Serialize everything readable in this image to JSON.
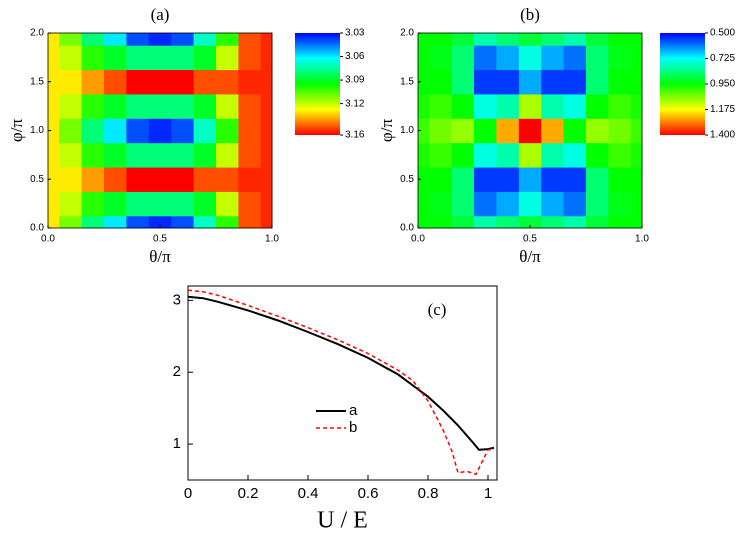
{
  "chart_data": [
    {
      "type": "heatmap",
      "title": "(a)",
      "xlabel": "θ/π",
      "ylabel": "φ/π",
      "x": [
        0,
        0.1,
        0.2,
        0.3,
        0.4,
        0.5,
        0.6,
        0.7,
        0.8,
        0.9,
        1.0
      ],
      "y": [
        0,
        0.25,
        0.5,
        0.75,
        1.0,
        1.25,
        1.5,
        1.75,
        2.0
      ],
      "z": [
        [
          3.13,
          3.11,
          3.08,
          3.06,
          3.04,
          3.035,
          3.04,
          3.07,
          3.1,
          3.15,
          3.155
        ],
        [
          3.13,
          3.12,
          3.1,
          3.09,
          3.08,
          3.08,
          3.08,
          3.09,
          3.12,
          3.15,
          3.155
        ],
        [
          3.13,
          3.13,
          3.14,
          3.15,
          3.16,
          3.16,
          3.16,
          3.15,
          3.15,
          3.155,
          3.155
        ],
        [
          3.13,
          3.12,
          3.1,
          3.09,
          3.08,
          3.08,
          3.08,
          3.09,
          3.12,
          3.15,
          3.155
        ],
        [
          3.13,
          3.11,
          3.08,
          3.06,
          3.04,
          3.035,
          3.04,
          3.07,
          3.1,
          3.15,
          3.155
        ],
        [
          3.13,
          3.12,
          3.1,
          3.09,
          3.08,
          3.08,
          3.08,
          3.09,
          3.12,
          3.15,
          3.155
        ],
        [
          3.13,
          3.13,
          3.14,
          3.15,
          3.16,
          3.16,
          3.16,
          3.15,
          3.15,
          3.155,
          3.155
        ],
        [
          3.13,
          3.12,
          3.1,
          3.09,
          3.08,
          3.08,
          3.08,
          3.09,
          3.12,
          3.15,
          3.155
        ],
        [
          3.13,
          3.11,
          3.08,
          3.06,
          3.04,
          3.035,
          3.04,
          3.07,
          3.1,
          3.15,
          3.155
        ]
      ],
      "xlim": [
        0,
        1
      ],
      "ylim": [
        0,
        2
      ],
      "xticks": [
        {
          "value": 0,
          "label": "0.0"
        },
        {
          "value": 0.5,
          "label": "0.5"
        },
        {
          "value": 1,
          "label": "1.0"
        }
      ],
      "yticks": [
        {
          "value": 0,
          "label": "0.0"
        },
        {
          "value": 0.5,
          "label": "0.5"
        },
        {
          "value": 1,
          "label": "1.0"
        },
        {
          "value": 1.5,
          "label": "1.5"
        },
        {
          "value": 2,
          "label": "2.0"
        }
      ],
      "zlim": [
        3.03,
        3.16
      ],
      "zticks": [
        3.03,
        3.06,
        3.09,
        3.12,
        3.16
      ],
      "colormap": [
        "#0000ff",
        "#00ffff",
        "#00ff00",
        "#ffff00",
        "#ff0000"
      ]
    },
    {
      "type": "heatmap",
      "title": "(b)",
      "xlabel": "θ/π",
      "ylabel": "φ/π",
      "x": [
        0,
        0.1,
        0.2,
        0.3,
        0.4,
        0.5,
        0.6,
        0.7,
        0.8,
        0.9,
        1.0
      ],
      "y": [
        0,
        0.25,
        0.5,
        0.75,
        1.0,
        1.25,
        1.5,
        1.75,
        2.0
      ],
      "z": [
        [
          0.95,
          0.95,
          0.9,
          0.8,
          0.85,
          0.9,
          0.85,
          0.8,
          0.9,
          0.95,
          0.95
        ],
        [
          0.95,
          0.93,
          0.85,
          0.6,
          0.65,
          0.75,
          0.65,
          0.6,
          0.85,
          0.93,
          0.95
        ],
        [
          0.95,
          0.95,
          0.85,
          0.55,
          0.55,
          0.65,
          0.55,
          0.55,
          0.85,
          0.95,
          0.95
        ],
        [
          0.97,
          1.0,
          0.95,
          0.75,
          0.8,
          1.1,
          0.8,
          0.75,
          0.95,
          1.0,
          0.97
        ],
        [
          1.0,
          1.05,
          1.08,
          0.95,
          1.25,
          1.4,
          1.25,
          0.95,
          1.08,
          1.05,
          1.0
        ],
        [
          0.97,
          1.0,
          0.95,
          0.75,
          0.8,
          1.1,
          0.8,
          0.75,
          0.95,
          1.0,
          0.97
        ],
        [
          0.95,
          0.95,
          0.85,
          0.55,
          0.55,
          0.65,
          0.55,
          0.55,
          0.85,
          0.95,
          0.95
        ],
        [
          0.95,
          0.93,
          0.85,
          0.6,
          0.65,
          0.75,
          0.65,
          0.6,
          0.85,
          0.93,
          0.95
        ],
        [
          0.95,
          0.95,
          0.9,
          0.8,
          0.85,
          0.9,
          0.85,
          0.8,
          0.9,
          0.95,
          0.95
        ]
      ],
      "xlim": [
        0,
        1
      ],
      "ylim": [
        0,
        2
      ],
      "xticks": [
        {
          "value": 0,
          "label": "0.0"
        },
        {
          "value": 0.5,
          "label": "0.5"
        },
        {
          "value": 1,
          "label": "1.0"
        }
      ],
      "yticks": [
        {
          "value": 0,
          "label": "0.0"
        },
        {
          "value": 0.5,
          "label": "0.5"
        },
        {
          "value": 1,
          "label": "1.0"
        },
        {
          "value": 1.5,
          "label": "1.5"
        },
        {
          "value": 2,
          "label": "2.0"
        }
      ],
      "zlim": [
        0.5,
        1.4
      ],
      "zticks": [
        {
          "value": 0.5,
          "label": "0.500"
        },
        {
          "value": 0.725,
          "label": "0.725"
        },
        {
          "value": 0.95,
          "label": "0.950"
        },
        {
          "value": 1.175,
          "label": "1.175"
        },
        {
          "value": 1.4,
          "label": "1.400"
        }
      ],
      "colormap": [
        "#0000ff",
        "#00ffff",
        "#00ff00",
        "#ffff00",
        "#ff0000"
      ]
    },
    {
      "type": "line",
      "title": "(c)",
      "xlabel": "U / E",
      "series": [
        {
          "name": "a",
          "color": "#000000",
          "linestyle": "solid",
          "x": [
            0,
            0.05,
            0.1,
            0.2,
            0.3,
            0.4,
            0.5,
            0.6,
            0.7,
            0.8,
            0.85,
            0.9,
            0.95,
            0.97,
            1.0,
            1.02
          ],
          "values": [
            3.05,
            3.03,
            2.98,
            2.86,
            2.72,
            2.56,
            2.39,
            2.2,
            1.97,
            1.66,
            1.47,
            1.26,
            1.02,
            0.92,
            0.93,
            0.95
          ]
        },
        {
          "name": "b",
          "color": "#ff0000",
          "linestyle": "dashed",
          "x": [
            0,
            0.05,
            0.1,
            0.2,
            0.3,
            0.4,
            0.5,
            0.6,
            0.7,
            0.75,
            0.8,
            0.85,
            0.88,
            0.9,
            0.93,
            0.96,
            0.98,
            1.0,
            1.02
          ],
          "values": [
            3.14,
            3.12,
            3.07,
            2.93,
            2.78,
            2.62,
            2.45,
            2.26,
            2.03,
            1.88,
            1.6,
            1.2,
            0.9,
            0.6,
            0.62,
            0.58,
            0.75,
            0.92,
            0.93
          ]
        }
      ],
      "xlim": [
        0,
        1.03
      ],
      "ylim": [
        0.5,
        3.2
      ],
      "xticks": [
        0,
        0.2,
        0.4,
        0.6,
        0.8,
        1
      ],
      "yticks": [
        1,
        2,
        3
      ],
      "legend": "center"
    }
  ]
}
